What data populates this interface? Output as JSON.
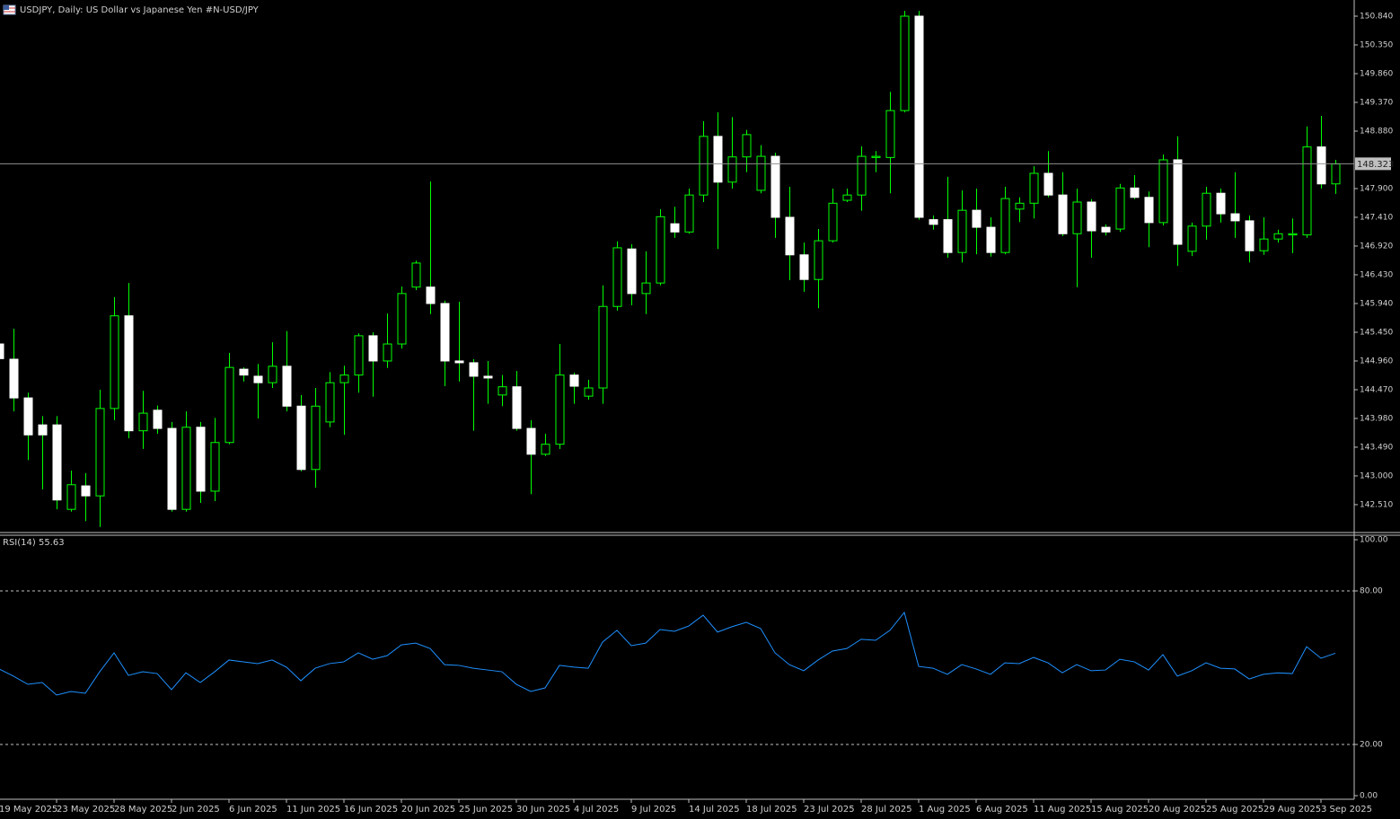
{
  "chart_data": [
    {
      "type": "candlestick",
      "title": "USDJPY, Daily:  US Dollar vs  Japanese Yen #N-USD/JPY",
      "up_color": "#000000",
      "down_color": "#ffffff",
      "wick_color": "#00ff00",
      "last_price": 148.323,
      "ylim": [
        142.05,
        151.085
      ],
      "yticks": [
        {
          "value": 150.84,
          "label": "150.840"
        },
        {
          "value": 150.35,
          "label": "150.350"
        },
        {
          "value": 149.86,
          "label": "149.860"
        },
        {
          "value": 149.37,
          "label": "149.370"
        },
        {
          "value": 148.88,
          "label": "148.880"
        },
        {
          "value": 147.9,
          "label": "147.900"
        },
        {
          "value": 147.41,
          "label": "147.410"
        },
        {
          "value": 146.92,
          "label": "146.920"
        },
        {
          "value": 146.43,
          "label": "146.430"
        },
        {
          "value": 145.94,
          "label": "145.940"
        },
        {
          "value": 145.45,
          "label": "145.450"
        },
        {
          "value": 144.96,
          "label": "144.960"
        },
        {
          "value": 144.47,
          "label": "144.470"
        },
        {
          "value": 143.98,
          "label": "143.980"
        },
        {
          "value": 143.49,
          "label": "143.490"
        },
        {
          "value": 143.0,
          "label": "143.000"
        },
        {
          "value": 142.51,
          "label": "142.510"
        }
      ],
      "open": [
        145.25,
        144.99,
        144.33,
        143.87,
        143.87,
        142.43,
        142.83,
        142.66,
        144.15,
        145.73,
        143.77,
        144.12,
        143.81,
        142.43,
        143.83,
        142.74,
        143.57,
        144.82,
        144.7,
        144.59,
        144.87,
        144.19,
        143.11,
        143.92,
        144.59,
        144.72,
        145.39,
        144.96,
        145.25,
        146.22,
        146.22,
        145.94,
        144.96,
        144.93,
        144.7,
        144.38,
        144.52,
        143.81,
        143.37,
        143.54,
        144.72,
        144.36,
        144.5,
        145.89,
        146.87,
        146.11,
        146.29,
        147.3,
        147.16,
        147.79,
        148.79,
        148.01,
        148.44,
        147.87,
        148.45,
        147.41,
        146.77,
        146.35,
        147.01,
        147.7,
        147.79,
        148.43,
        148.43,
        149.23,
        150.84,
        147.37,
        147.37,
        146.81,
        147.53,
        147.24,
        146.81,
        147.55,
        147.65,
        148.16,
        147.79,
        147.13,
        147.67,
        147.24,
        147.21,
        147.91,
        147.75,
        147.32,
        148.39,
        146.83,
        147.26,
        147.82,
        147.47,
        147.35,
        146.84,
        147.04,
        147.11,
        147.11,
        148.61,
        147.98
      ],
      "high": [
        145.4,
        145.51,
        144.42,
        144.02,
        144.02,
        143.09,
        143.05,
        144.47,
        146.05,
        146.29,
        144.45,
        144.2,
        143.92,
        144.1,
        143.92,
        143.99,
        145.1,
        144.85,
        144.91,
        145.28,
        145.47,
        144.38,
        144.5,
        144.77,
        144.88,
        145.43,
        145.45,
        145.77,
        146.23,
        146.67,
        148.02,
        145.99,
        145.97,
        144.99,
        144.96,
        144.72,
        144.79,
        143.95,
        143.72,
        145.25,
        144.76,
        144.64,
        146.25,
        147.0,
        146.95,
        146.83,
        147.55,
        147.59,
        147.9,
        149.05,
        149.2,
        149.12,
        148.9,
        148.64,
        148.51,
        147.93,
        146.98,
        147.21,
        147.9,
        147.9,
        148.62,
        148.54,
        149.55,
        150.93,
        150.93,
        147.44,
        148.1,
        147.87,
        147.9,
        147.41,
        147.93,
        147.75,
        148.28,
        148.54,
        148.18,
        147.9,
        147.72,
        147.29,
        147.98,
        148.13,
        147.85,
        148.48,
        148.79,
        147.32,
        147.93,
        147.9,
        148.18,
        147.44,
        147.41,
        147.2,
        147.39,
        148.96,
        149.14,
        148.39
      ],
      "low": [
        144.95,
        144.1,
        143.27,
        142.77,
        142.43,
        142.39,
        142.23,
        142.13,
        143.95,
        143.64,
        143.46,
        143.72,
        142.39,
        142.39,
        142.54,
        142.57,
        143.54,
        144.61,
        143.98,
        144.5,
        144.1,
        143.08,
        142.8,
        143.83,
        143.7,
        144.42,
        144.35,
        144.84,
        145.17,
        146.17,
        145.76,
        144.53,
        144.61,
        143.77,
        144.23,
        144.19,
        143.77,
        142.69,
        143.34,
        143.46,
        144.23,
        144.3,
        144.23,
        145.82,
        145.91,
        145.76,
        146.25,
        147.06,
        147.13,
        147.67,
        146.87,
        147.9,
        148.18,
        147.82,
        147.06,
        146.34,
        146.14,
        145.86,
        146.98,
        147.67,
        147.52,
        148.18,
        147.82,
        149.2,
        147.37,
        147.2,
        146.72,
        146.64,
        146.78,
        146.74,
        146.78,
        147.33,
        147.39,
        147.75,
        147.09,
        146.22,
        146.72,
        147.1,
        147.16,
        147.72,
        146.9,
        147.27,
        146.58,
        146.75,
        147.03,
        147.32,
        147.06,
        146.64,
        146.77,
        146.98,
        146.8,
        147.06,
        147.9,
        147.81
      ],
      "close": [
        145.0,
        144.33,
        143.7,
        143.7,
        142.59,
        142.85,
        142.66,
        144.15,
        145.73,
        143.77,
        144.07,
        143.81,
        142.43,
        143.83,
        142.74,
        143.57,
        144.85,
        144.72,
        144.59,
        144.87,
        144.19,
        143.11,
        144.19,
        144.59,
        144.72,
        145.39,
        144.96,
        145.25,
        146.11,
        146.63,
        145.94,
        144.96,
        144.93,
        144.7,
        144.67,
        144.52,
        143.81,
        143.37,
        143.54,
        144.72,
        144.53,
        144.5,
        145.89,
        146.89,
        146.11,
        146.29,
        147.42,
        147.16,
        147.79,
        148.79,
        148.01,
        148.44,
        148.82,
        148.45,
        147.41,
        146.77,
        146.35,
        147.01,
        147.65,
        147.79,
        148.45,
        148.45,
        149.23,
        150.84,
        147.41,
        147.29,
        146.81,
        147.53,
        147.24,
        146.81,
        147.73,
        147.65,
        148.16,
        147.79,
        147.13,
        147.67,
        147.18,
        147.16,
        147.91,
        147.75,
        147.32,
        148.39,
        146.95,
        147.26,
        147.82,
        147.47,
        147.35,
        146.84,
        147.04,
        147.13,
        147.13,
        148.61,
        147.98,
        148.32
      ]
    },
    {
      "type": "line",
      "title": "RSI(14) 55.63",
      "color": "#1e90ff",
      "grid": true,
      "ylim": [
        0,
        100
      ],
      "yticks": [
        {
          "value": 100,
          "label": "100.00"
        },
        {
          "value": 80,
          "label": "80.00"
        },
        {
          "value": 20,
          "label": "20.00"
        },
        {
          "value": 0,
          "label": "0.00"
        }
      ],
      "categories": [
        "19 May 2025",
        null,
        null,
        null,
        "23 May 2025",
        null,
        null,
        null,
        "28 May 2025",
        null,
        null,
        null,
        "2 Jun 2025",
        null,
        null,
        null,
        "6 Jun 2025",
        null,
        null,
        null,
        "11 Jun 2025",
        null,
        null,
        null,
        "16 Jun 2025",
        null,
        null,
        null,
        "20 Jun 2025",
        null,
        null,
        null,
        "25 Jun 2025",
        null,
        null,
        null,
        "30 Jun 2025",
        null,
        null,
        null,
        "4 Jul 2025",
        null,
        null,
        null,
        "9 Jul 2025",
        null,
        null,
        null,
        "14 Jul 2025",
        null,
        null,
        null,
        "18 Jul 2025",
        null,
        null,
        null,
        "23 Jul 2025",
        null,
        null,
        null,
        "28 Jul 2025",
        null,
        null,
        null,
        "1 Aug 2025",
        null,
        null,
        null,
        "6 Aug 2025",
        null,
        null,
        null,
        "11 Aug 2025",
        null,
        null,
        null,
        "15 Aug 2025",
        null,
        null,
        null,
        "20 Aug 2025",
        null,
        null,
        null,
        "25 Aug 2025",
        null,
        null,
        null,
        "29 Aug 2025",
        null,
        null,
        null,
        "3 Sep 2025",
        null
      ],
      "values": [
        49.5,
        46.7,
        43.5,
        44.2,
        39.3,
        40.7,
        40.0,
        48.4,
        55.8,
        47.0,
        48.4,
        47.7,
        41.4,
        48.0,
        44.2,
        48.4,
        53.0,
        52.3,
        51.6,
        53.0,
        50.2,
        44.9,
        49.8,
        51.6,
        52.3,
        55.8,
        53.3,
        54.7,
        58.9,
        59.6,
        57.5,
        51.2,
        50.9,
        49.8,
        49.1,
        48.4,
        43.5,
        40.7,
        42.1,
        50.9,
        50.2,
        49.8,
        60.0,
        64.6,
        58.6,
        59.6,
        64.9,
        64.2,
        66.3,
        70.5,
        63.9,
        66.0,
        67.7,
        65.3,
        55.8,
        51.2,
        48.8,
        53.0,
        56.5,
        57.5,
        61.1,
        60.7,
        64.6,
        71.6,
        50.5,
        49.8,
        47.4,
        51.2,
        49.5,
        47.4,
        51.9,
        51.6,
        54.0,
        51.9,
        48.0,
        51.2,
        48.8,
        49.1,
        53.3,
        52.3,
        49.1,
        55.1,
        46.7,
        48.8,
        51.9,
        49.8,
        49.5,
        45.6,
        47.4,
        48.0,
        47.7,
        58.2,
        53.7,
        55.63
      ]
    }
  ]
}
